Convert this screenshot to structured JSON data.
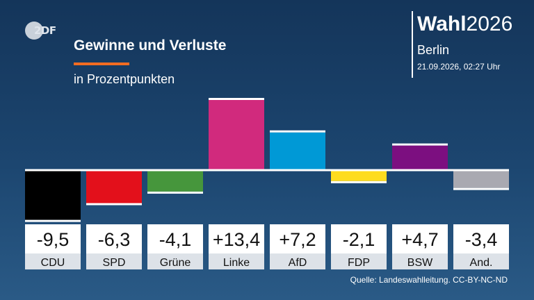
{
  "header": {
    "title": "Gewinne und Verluste",
    "subtitle": "in Prozentpunkten",
    "logo_text": "2DF"
  },
  "brand": {
    "title_bold": "Wahl",
    "title_year": "2026",
    "city": "Berlin",
    "timestamp": "21.09.2026, 02:27 Uhr"
  },
  "chart_data": {
    "type": "bar",
    "categories": [
      "CDU",
      "SPD",
      "Grüne",
      "Linke",
      "AfD",
      "FDP",
      "BSW",
      "And."
    ],
    "values": [
      -9.5,
      -6.3,
      -4.1,
      13.4,
      7.2,
      -2.1,
      4.7,
      -3.4
    ],
    "value_labels": [
      "-9,5",
      "-6,3",
      "-4,1",
      "+13,4",
      "+7,2",
      "-2,1",
      "+4,7",
      "-3,4"
    ],
    "colors": [
      "#000000",
      "#e3101b",
      "#46963c",
      "#d12a7d",
      "#0099d6",
      "#fedc1f",
      "#7c0f80",
      "#a9a9b1"
    ],
    "title": "Gewinne und Verluste",
    "subtitle": "in Prozentpunkten",
    "ylim": [
      -9.5,
      13.4
    ],
    "grid": false,
    "legend": "none"
  },
  "footer": {
    "source": "Quelle: Landeswahlleitung. CC-BY-NC-ND"
  }
}
